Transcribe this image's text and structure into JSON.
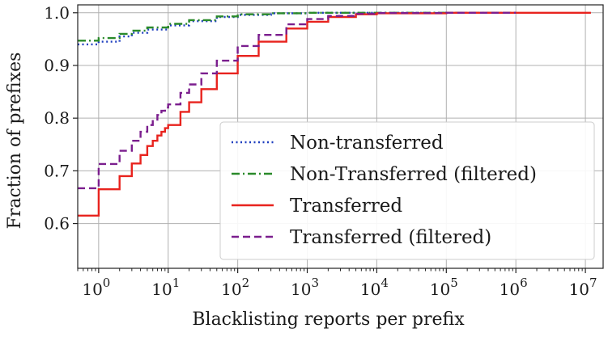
{
  "chart_data": {
    "type": "line",
    "xscale": "log",
    "xlabel": "Blacklisting reports per prefix",
    "ylabel": "Fraction of prefixes",
    "xlim": [
      0.5,
      18000000
    ],
    "ylim": [
      0.515,
      1.015
    ],
    "grid": true,
    "legend_position": "lower-right",
    "x_ticks": [
      {
        "value": 1,
        "base": "10",
        "exp": "0"
      },
      {
        "value": 10,
        "base": "10",
        "exp": "1"
      },
      {
        "value": 100,
        "base": "10",
        "exp": "2"
      },
      {
        "value": 1000,
        "base": "10",
        "exp": "3"
      },
      {
        "value": 10000,
        "base": "10",
        "exp": "4"
      },
      {
        "value": 100000,
        "base": "10",
        "exp": "5"
      },
      {
        "value": 1000000,
        "base": "10",
        "exp": "6"
      },
      {
        "value": 10000000,
        "base": "10",
        "exp": "7"
      }
    ],
    "y_ticks": [
      {
        "value": 0.6,
        "label": "0.6"
      },
      {
        "value": 0.7,
        "label": "0.7"
      },
      {
        "value": 0.8,
        "label": "0.8"
      },
      {
        "value": 0.9,
        "label": "0.9"
      },
      {
        "value": 1.0,
        "label": "1.0"
      }
    ],
    "series": [
      {
        "name": "Non-transferred",
        "color": "#1f3fbf",
        "dash": "dotted",
        "x": [
          0.5,
          1,
          2,
          3,
          5,
          10,
          20,
          50,
          100,
          300,
          1000,
          10000,
          1000000
        ],
        "y": [
          0.94,
          0.945,
          0.955,
          0.962,
          0.968,
          0.976,
          0.984,
          0.992,
          0.996,
          0.999,
          1.0,
          1.0,
          1.0
        ]
      },
      {
        "name": "Non-Transferred (filtered)",
        "color": "#2a8a2a",
        "dash": "dashdot",
        "x": [
          0.5,
          1,
          2,
          3,
          5,
          10,
          20,
          50,
          100,
          300,
          1000,
          10000,
          1000000
        ],
        "y": [
          0.947,
          0.952,
          0.96,
          0.966,
          0.972,
          0.979,
          0.986,
          0.993,
          0.997,
          0.999,
          1.0,
          1.0,
          1.0
        ]
      },
      {
        "name": "Transferred",
        "color": "#e8231e",
        "dash": "solid",
        "x": [
          0.5,
          1,
          2,
          3,
          4,
          5,
          6,
          7,
          8,
          9,
          10,
          15,
          20,
          30,
          50,
          100,
          200,
          500,
          1000,
          2000,
          5000,
          10000,
          100000,
          1000000,
          12000000
        ],
        "y": [
          0.615,
          0.665,
          0.69,
          0.714,
          0.73,
          0.747,
          0.757,
          0.767,
          0.774,
          0.781,
          0.787,
          0.812,
          0.83,
          0.855,
          0.885,
          0.918,
          0.945,
          0.97,
          0.983,
          0.992,
          0.997,
          0.999,
          1.0,
          1.0,
          1.0
        ]
      },
      {
        "name": "Transferred (filtered)",
        "color": "#7b1e8e",
        "dash": "dashed",
        "x": [
          0.5,
          1,
          2,
          3,
          4,
          5,
          6,
          7,
          8,
          9,
          10,
          15,
          20,
          30,
          50,
          100,
          200,
          500,
          1000,
          2000,
          5000,
          10000,
          100000,
          1000000
        ],
        "y": [
          0.667,
          0.713,
          0.738,
          0.757,
          0.774,
          0.787,
          0.797,
          0.806,
          0.814,
          0.82,
          0.826,
          0.848,
          0.864,
          0.885,
          0.909,
          0.937,
          0.958,
          0.978,
          0.988,
          0.994,
          0.998,
          0.9995,
          1.0,
          1.0
        ]
      }
    ]
  }
}
